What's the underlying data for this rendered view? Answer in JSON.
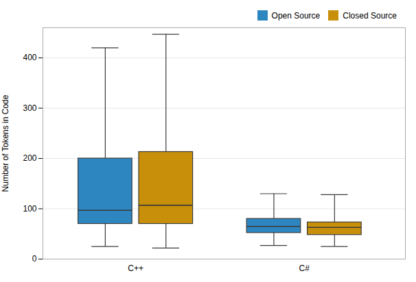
{
  "chart_data": {
    "type": "box",
    "categories": [
      "C++",
      "C#"
    ],
    "ylabel": "Number of Tokens in Code",
    "series": [
      {
        "name": "Open Source",
        "color": "#2e86c1",
        "values": [
          {
            "whislo": 25,
            "q1": 70,
            "med": 97,
            "q3": 200,
            "whishi": 420
          },
          {
            "whislo": 27,
            "q1": 52,
            "med": 65,
            "q3": 80,
            "whishi": 130
          }
        ]
      },
      {
        "name": "Closed Source",
        "color": "#c8900a",
        "values": [
          {
            "whislo": 22,
            "q1": 70,
            "med": 107,
            "q3": 213,
            "whishi": 447
          },
          {
            "whislo": 25,
            "q1": 48,
            "med": 63,
            "q3": 73,
            "whishi": 128
          }
        ]
      }
    ],
    "ylim": [
      0,
      460
    ],
    "yticks": [
      0,
      100,
      200,
      300,
      400
    ],
    "grid": true,
    "legend": "upper right"
  }
}
